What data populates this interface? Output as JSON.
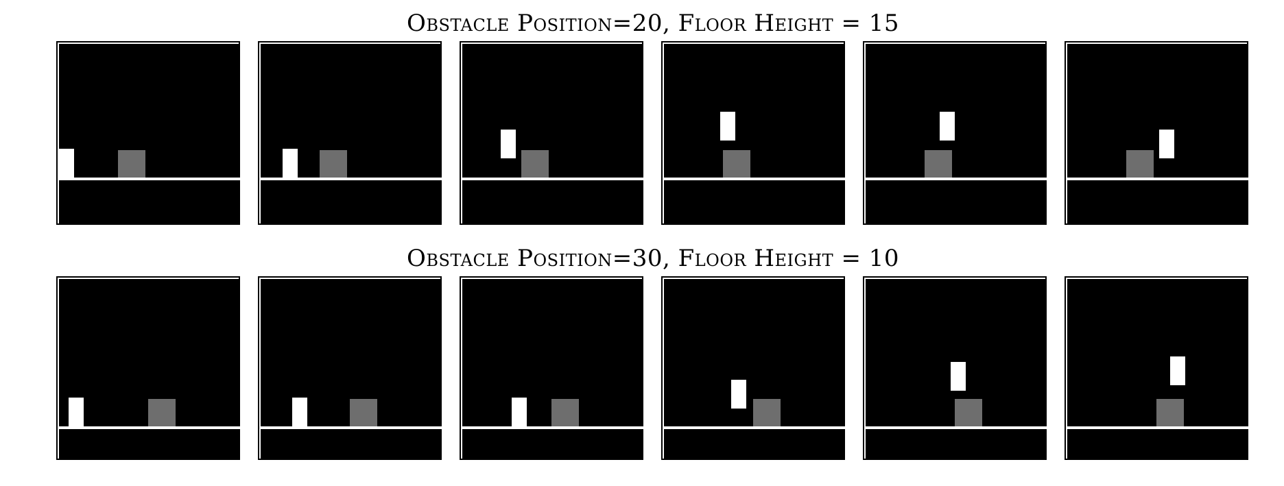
{
  "colors": {
    "background": "#000000",
    "floor_line": "#ffffff",
    "agent": "#ffffff",
    "obstacle": "#6e6e6e",
    "frame_border": "#000000"
  },
  "rows": [
    {
      "title": "Obstacle Position=20, Floor Height = 15",
      "obstacle_position": 20,
      "floor_height": 15,
      "frames": [
        {
          "agent_x": 0,
          "agent_lift": 0
        },
        {
          "agent_x": 32,
          "agent_lift": 0
        },
        {
          "agent_x": 56,
          "agent_lift": 28
        },
        {
          "agent_x": 82,
          "agent_lift": 54
        },
        {
          "agent_x": 108,
          "agent_lift": 54
        },
        {
          "agent_x": 134,
          "agent_lift": 28
        }
      ]
    },
    {
      "title": "Obstacle Position=30, Floor Height = 10",
      "obstacle_position": 30,
      "floor_height": 10,
      "frames": [
        {
          "agent_x": 14,
          "agent_lift": 0
        },
        {
          "agent_x": 46,
          "agent_lift": 0
        },
        {
          "agent_x": 72,
          "agent_lift": 0
        },
        {
          "agent_x": 98,
          "agent_lift": 26
        },
        {
          "agent_x": 124,
          "agent_lift": 52
        },
        {
          "agent_x": 150,
          "agent_lift": 60
        }
      ]
    }
  ]
}
